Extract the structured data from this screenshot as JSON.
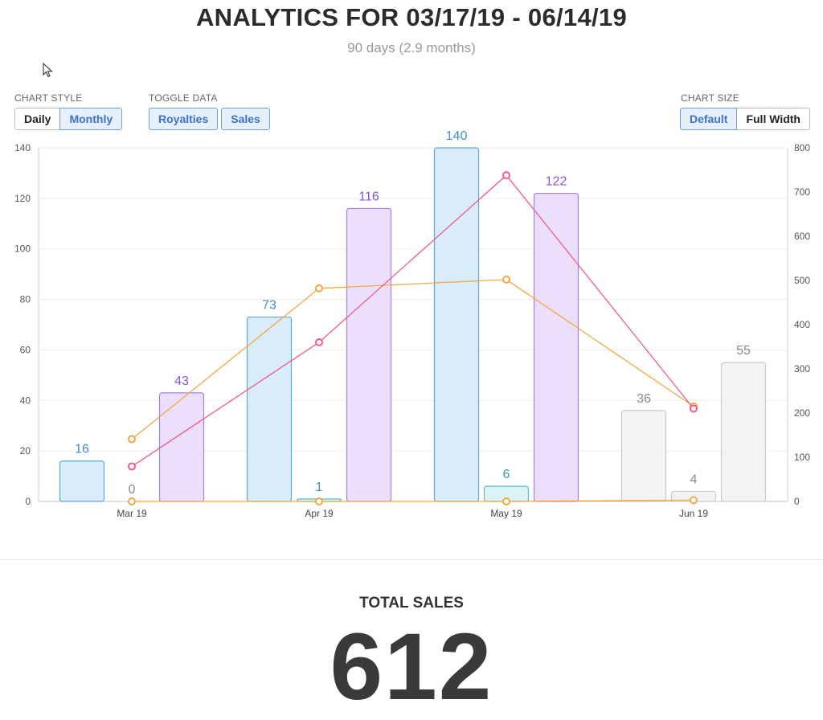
{
  "header": {
    "title": "ANALYTICS FOR 03/17/19 - 06/14/19",
    "subtitle": "90 days (2.9 months)"
  },
  "controls": {
    "chart_style": {
      "label": "CHART STYLE",
      "options": [
        "Daily",
        "Monthly"
      ],
      "selected": "Monthly"
    },
    "toggle_data": {
      "label": "TOGGLE DATA",
      "options": [
        "Royalties",
        "Sales"
      ],
      "selected": [
        "Royalties",
        "Sales"
      ]
    },
    "chart_size": {
      "label": "CHART SIZE",
      "options": [
        "Default",
        "Full Width"
      ],
      "selected": "Default"
    }
  },
  "colors": {
    "blue": "#5aabdc",
    "blue_fill": "#d8ecfa",
    "purple": "#a97ee6",
    "purple_fill": "#ecdffc",
    "teal": "#5bbfc5",
    "teal_fill": "#dcf3f5",
    "gray": "#c8cacc",
    "gray_fill": "#f2f3f5",
    "line_orange": "#f6a641",
    "line_pink": "#f2598a"
  },
  "chart_data": {
    "type": "bar",
    "x_ticks": [
      "Mar 19",
      "Apr 19",
      "May 19",
      "Jun 19"
    ],
    "ylim_left": [
      0,
      140
    ],
    "yticks_left": [
      0,
      20,
      40,
      60,
      80,
      100,
      120,
      140
    ],
    "ylim_right": [
      0,
      800
    ],
    "yticks_right": [
      0,
      100,
      200,
      300,
      400,
      500,
      600,
      700,
      800
    ],
    "grid": true,
    "bar_groups": [
      {
        "month": "Mar 19",
        "bars": [
          {
            "value": 16,
            "label": "16",
            "color": "blue"
          },
          {
            "value": 0,
            "label": "0",
            "color": "gray"
          },
          {
            "value": 43,
            "label": "43",
            "color": "purple"
          }
        ]
      },
      {
        "month": "Apr 19",
        "bars": [
          {
            "value": 73,
            "label": "73",
            "color": "blue"
          },
          {
            "value": 1,
            "label": "1",
            "color": "teal"
          },
          {
            "value": 116,
            "label": "116",
            "color": "purple"
          }
        ]
      },
      {
        "month": "May 19",
        "bars": [
          {
            "value": 140,
            "label": "140",
            "color": "blue"
          },
          {
            "value": 6,
            "label": "6",
            "color": "teal"
          },
          {
            "value": 122,
            "label": "122",
            "color": "purple"
          }
        ]
      },
      {
        "month": "Jun 19",
        "bars": [
          {
            "value": 36,
            "label": "36",
            "color": "gray"
          },
          {
            "value": 4,
            "label": "4",
            "color": "gray"
          },
          {
            "value": 55,
            "label": "55",
            "color": "gray"
          }
        ]
      }
    ],
    "line_series": [
      {
        "color": "line_orange",
        "axis": "right",
        "values": [
          141,
          482,
          502,
          215
        ]
      },
      {
        "color": "line_pink",
        "axis": "right",
        "values": [
          79,
          360,
          738,
          210
        ]
      },
      {
        "color": "line_orange",
        "axis": "right",
        "values": [
          0,
          0,
          0,
          3
        ]
      }
    ]
  },
  "summary": {
    "total_sales_label": "TOTAL SALES",
    "total_sales_value": "612"
  }
}
